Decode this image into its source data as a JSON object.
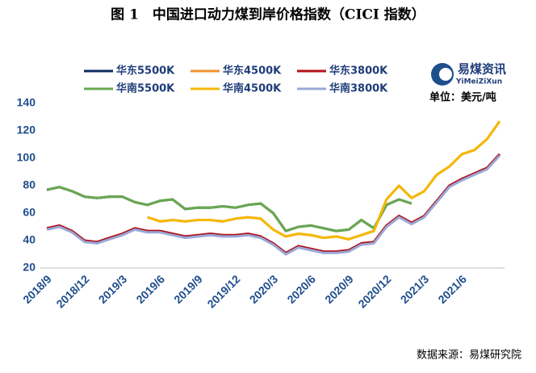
{
  "chart_data": {
    "type": "line",
    "title": "图 1　中国进口动力煤到岸价格指数（CICI 指数）",
    "logo_text": "易煤资讯",
    "logo_subtext": "YiMeiZiXun",
    "unit_label": "单位：美元/吨",
    "source": "数据来源：易煤研究院",
    "categories": [
      "2018/9",
      null,
      null,
      "2018/12",
      null,
      null,
      "2019/3",
      null,
      null,
      "2019/6",
      null,
      null,
      "2019/9",
      null,
      null,
      "2019/12",
      null,
      null,
      "2020/3",
      null,
      null,
      "2020/6",
      null,
      null,
      "2020/9",
      null,
      null,
      "2020/12",
      null,
      null,
      "2021/3",
      null,
      null,
      "2021/6",
      null,
      null,
      null
    ],
    "ylim": [
      20,
      140
    ],
    "yticks": [
      20,
      40,
      60,
      80,
      100,
      120,
      140
    ],
    "grid": false,
    "series": [
      {
        "name": "华东5500K",
        "color": "#0d2a5c",
        "values": [
          77,
          79,
          76,
          72,
          71,
          72,
          72,
          68,
          66,
          69,
          70,
          63,
          64,
          64,
          65,
          64,
          66,
          67,
          60,
          47,
          50,
          51,
          49,
          47,
          48,
          55,
          49,
          66,
          70,
          67,
          null,
          null,
          null,
          null,
          null,
          null,
          null
        ]
      },
      {
        "name": "华东4500K",
        "color": "#f0922f",
        "values": [
          null,
          null,
          null,
          null,
          null,
          null,
          null,
          null,
          57,
          54,
          55,
          54,
          55,
          55,
          54,
          56,
          57,
          56,
          48,
          43,
          45,
          44,
          42,
          43,
          41,
          44,
          47,
          70,
          80,
          71,
          76,
          88,
          94,
          103,
          106,
          114,
          127
        ]
      },
      {
        "name": "华东3800K",
        "color": "#b0121b",
        "values": [
          49,
          51,
          47,
          40,
          39,
          42,
          45,
          49,
          47,
          47,
          45,
          43,
          44,
          45,
          44,
          44,
          45,
          43,
          38,
          31,
          36,
          34,
          32,
          32,
          33,
          38,
          39,
          51,
          58,
          53,
          58,
          69,
          80,
          85,
          89,
          93,
          103
        ]
      },
      {
        "name": "华南5500K",
        "color": "#6aa84f",
        "values": [
          77,
          79,
          76,
          72,
          71,
          72,
          72,
          68,
          66,
          69,
          70,
          63,
          64,
          64,
          65,
          64,
          66,
          67,
          60,
          47,
          50,
          51,
          49,
          47,
          48,
          55,
          49,
          66,
          70,
          67,
          null,
          null,
          null,
          null,
          null,
          null,
          null
        ]
      },
      {
        "name": "华南4500K",
        "color": "#f5b800",
        "values": [
          null,
          null,
          null,
          null,
          null,
          null,
          null,
          null,
          57,
          54,
          55,
          54,
          55,
          55,
          54,
          56,
          57,
          56,
          48,
          43,
          45,
          44,
          42,
          43,
          41,
          44,
          47,
          70,
          80,
          71,
          76,
          88,
          94,
          103,
          106,
          114,
          127
        ]
      },
      {
        "name": "华南3800K",
        "color": "#9aa8d8",
        "values": [
          48,
          50,
          46,
          39,
          38,
          41,
          44,
          48,
          46,
          46,
          44,
          42,
          43,
          44,
          43,
          43,
          44,
          42,
          37,
          30,
          35,
          33,
          31,
          31,
          32,
          37,
          38,
          50,
          57,
          52,
          57,
          68,
          79,
          84,
          88,
          92,
          102
        ]
      }
    ]
  }
}
